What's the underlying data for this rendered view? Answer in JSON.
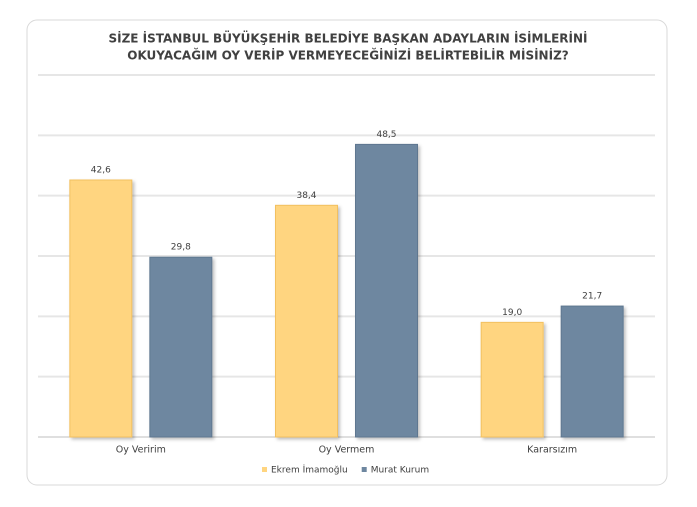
{
  "chart_data": {
    "type": "bar",
    "title": [
      "SİZE İSTANBUL BÜYÜKŞEHİR BELEDİYE BAŞKAN ADAYLARIN İSİMLERİNİ",
      "OKUYACAĞIM OY VERİP VERMEYECEĞİNİZİ BELİRTEBİLİR MİSİNİZ?"
    ],
    "categories": [
      "Oy Veririm",
      "Oy Vermem",
      "Kararsızım"
    ],
    "series": [
      {
        "name": "Ekrem İmamoğlu",
        "color": "#FFD580",
        "values": [
          42.6,
          38.4,
          19.0
        ],
        "value_labels": [
          "42,6",
          "38,4",
          "19,0"
        ]
      },
      {
        "name": "Murat Kurum",
        "color": "#6E87A0",
        "values": [
          29.8,
          48.5,
          21.7
        ],
        "value_labels": [
          "29,8",
          "48,5",
          "21,7"
        ]
      }
    ],
    "ylim": [
      0,
      60
    ],
    "yticks": [
      0,
      10,
      20,
      30,
      40,
      50,
      60
    ],
    "grid": true,
    "legend": "bottom"
  }
}
